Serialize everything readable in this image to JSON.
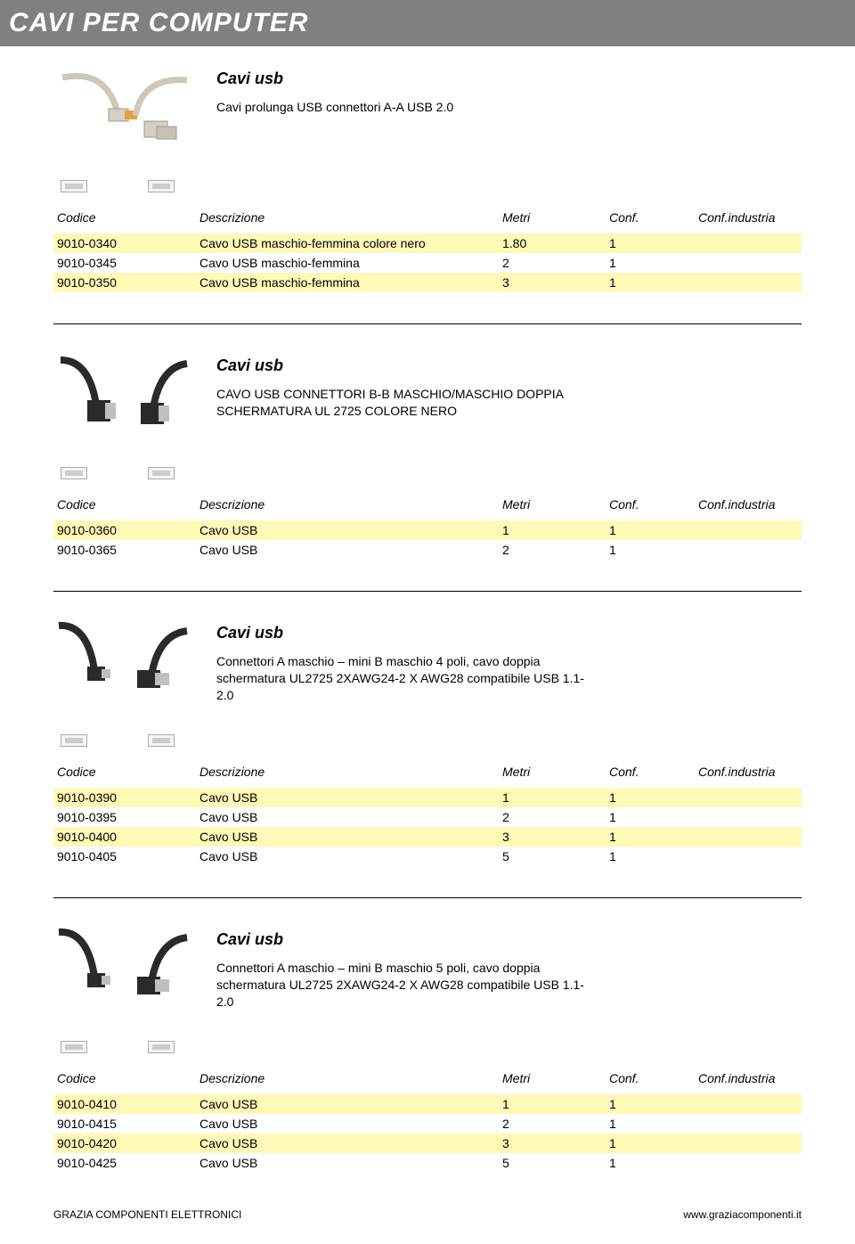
{
  "header": {
    "title": "CAVI PER COMPUTER"
  },
  "columns": {
    "codice": "Codice",
    "descrizione": "Descrizione",
    "metri": "Metri",
    "conf": "Conf.",
    "confindustria": "Conf.industria"
  },
  "sections": [
    {
      "title": "Cavi usb",
      "desc": "Cavi prolunga USB connettori A-A USB 2.0",
      "image": "usb-a-a-beige",
      "rows": [
        {
          "codice": "9010-0340",
          "descrizione": "Cavo USB maschio-femmina colore nero",
          "metri": "1.80",
          "conf": "1",
          "confind": "",
          "hl": true
        },
        {
          "codice": "9010-0345",
          "descrizione": "Cavo USB maschio-femmina",
          "metri": "2",
          "conf": "1",
          "confind": "",
          "hl": false
        },
        {
          "codice": "9010-0350",
          "descrizione": "Cavo USB maschio-femmina",
          "metri": "3",
          "conf": "1",
          "confind": "",
          "hl": true
        }
      ]
    },
    {
      "title": "Cavi usb",
      "desc": "CAVO USB CONNETTORI B-B MASCHIO/MASCHIO DOPPIA SCHERMATURA UL 2725 COLORE NERO",
      "image": "usb-b-b-black",
      "rows": [
        {
          "codice": "9010-0360",
          "descrizione": "Cavo USB",
          "metri": "1",
          "conf": "1",
          "confind": "",
          "hl": true
        },
        {
          "codice": "9010-0365",
          "descrizione": "Cavo USB",
          "metri": "2",
          "conf": "1",
          "confind": "",
          "hl": false
        }
      ]
    },
    {
      "title": "Cavi usb",
      "desc": "Connettori A maschio – mini B maschio 4 poli, cavo doppia schermatura UL2725 2XAWG24-2 X AWG28 compatibile USB 1.1-2.0",
      "image": "usb-a-minib-black",
      "rows": [
        {
          "codice": "9010-0390",
          "descrizione": "Cavo USB",
          "metri": "1",
          "conf": "1",
          "confind": "",
          "hl": true
        },
        {
          "codice": "9010-0395",
          "descrizione": "Cavo USB",
          "metri": "2",
          "conf": "1",
          "confind": "",
          "hl": false
        },
        {
          "codice": "9010-0400",
          "descrizione": "Cavo USB",
          "metri": "3",
          "conf": "1",
          "confind": "",
          "hl": true
        },
        {
          "codice": "9010-0405",
          "descrizione": "Cavo USB",
          "metri": "5",
          "conf": "1",
          "confind": "",
          "hl": false
        }
      ]
    },
    {
      "title": "Cavi usb",
      "desc": "Connettori A maschio – mini B maschio 5 poli, cavo doppia schermatura UL2725 2XAWG24-2 X AWG28 compatibile USB 1.1-2.0",
      "image": "usb-a-minib-black",
      "rows": [
        {
          "codice": "9010-0410",
          "descrizione": "Cavo USB",
          "metri": "1",
          "conf": "1",
          "confind": "",
          "hl": true
        },
        {
          "codice": "9010-0415",
          "descrizione": "Cavo USB",
          "metri": "2",
          "conf": "1",
          "confind": "",
          "hl": false
        },
        {
          "codice": "9010-0420",
          "descrizione": "Cavo USB",
          "metri": "3",
          "conf": "1",
          "confind": "",
          "hl": true
        },
        {
          "codice": "9010-0425",
          "descrizione": "Cavo USB",
          "metri": "5",
          "conf": "1",
          "confind": "",
          "hl": false
        }
      ]
    }
  ],
  "footer": {
    "left": "GRAZIA COMPONENTI ELETTRONICI",
    "right": "www.graziacomponenti.it"
  },
  "colors": {
    "header_bg": "#808080",
    "header_text": "#ffffff",
    "highlight_row": "#fff9b8",
    "text": "#000000",
    "rule": "#000000"
  }
}
